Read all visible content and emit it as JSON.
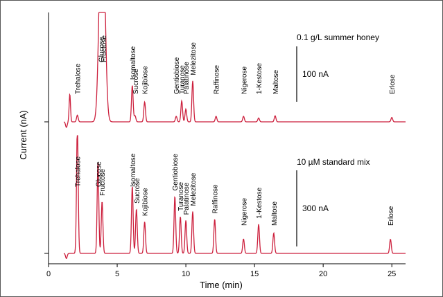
{
  "chart_data": {
    "type": "line",
    "xlabel": "Time (min)",
    "ylabel": "Current (nA)",
    "xlim": [
      0,
      26
    ],
    "xticks": [
      0,
      5,
      10,
      15,
      20,
      25
    ],
    "grid": false,
    "line_color": "#cc1f3c",
    "axis_color": "#000000",
    "frame_color": "#555555",
    "traces": [
      {
        "label": "0.1 g/L summer honey",
        "scale_bar_label": "100 nA",
        "scale_bar_nA": 100,
        "peaks": [
          {
            "name": "Trehalose",
            "t": 2.1,
            "height": 12
          },
          {
            "name": "Glucose",
            "t": 3.8,
            "height": 250
          },
          {
            "name": "Fructose",
            "t": 4.0,
            "height": 250
          },
          {
            "name": "Isomaltose",
            "t": 6.1,
            "height": 66
          },
          {
            "name": "Sucrose",
            "t": 6.3,
            "height": 11
          },
          {
            "name": "Kojibiose",
            "t": 7.0,
            "height": 36
          },
          {
            "name": "Gentiobiose",
            "t": 9.3,
            "height": 10
          },
          {
            "name": "Turanose",
            "t": 9.7,
            "height": 38
          },
          {
            "name": "Palatinose",
            "t": 10.0,
            "height": 23
          },
          {
            "name": "Melezitose",
            "t": 10.5,
            "height": 74
          },
          {
            "name": "Raffinose",
            "t": 12.2,
            "height": 10
          },
          {
            "name": "Nigerose",
            "t": 14.2,
            "height": 10
          },
          {
            "name": "1-Kestose",
            "t": 15.3,
            "height": 7
          },
          {
            "name": "Maltose",
            "t": 16.5,
            "height": 11
          },
          {
            "name": "Erlose",
            "t": 25.0,
            "height": 8
          }
        ]
      },
      {
        "label": "10 µM standard mix",
        "scale_bar_label": "300 nA",
        "scale_bar_nA": 300,
        "peaks": [
          {
            "name": "Trehalose",
            "t": 2.1,
            "height": 510
          },
          {
            "name": "Glucose",
            "t": 3.6,
            "height": 360
          },
          {
            "name": "Fructose",
            "t": 3.9,
            "height": 205
          },
          {
            "name": "Isomaltose",
            "t": 6.1,
            "height": 265
          },
          {
            "name": "Sucrose",
            "t": 6.4,
            "height": 175
          },
          {
            "name": "Kojibiose",
            "t": 7.0,
            "height": 125
          },
          {
            "name": "Gentiobiose",
            "t": 9.2,
            "height": 225
          },
          {
            "name": "Turanose",
            "t": 9.6,
            "height": 145
          },
          {
            "name": "Palatinose",
            "t": 10.0,
            "height": 130
          },
          {
            "name": "Melezitose",
            "t": 10.5,
            "height": 165
          },
          {
            "name": "Raffinose",
            "t": 12.1,
            "height": 135
          },
          {
            "name": "Nigerose",
            "t": 14.2,
            "height": 57
          },
          {
            "name": "1-Kestose",
            "t": 15.3,
            "height": 115
          },
          {
            "name": "Maltose",
            "t": 16.4,
            "height": 80
          },
          {
            "name": "Erlose",
            "t": 24.9,
            "height": 56
          }
        ]
      }
    ]
  }
}
